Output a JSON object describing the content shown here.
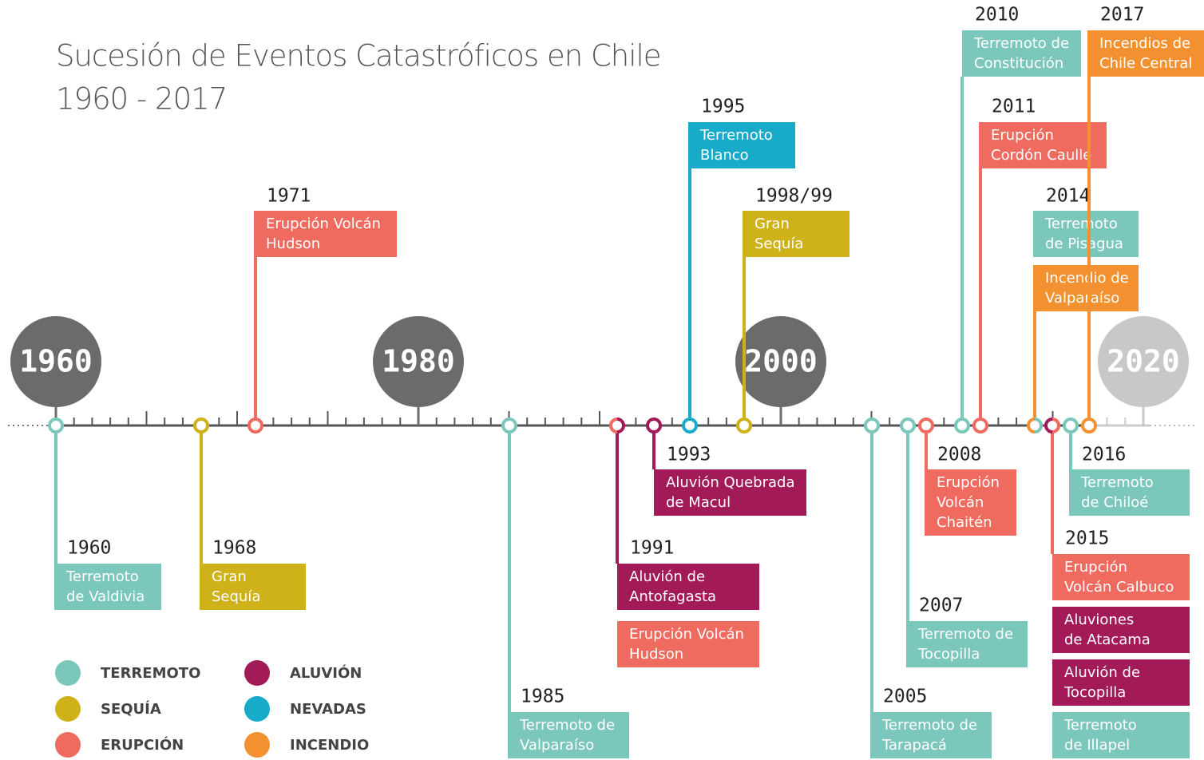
{
  "title": [
    "Sucesión de Eventos Catastróficos en Chile",
    "1960 - 2017"
  ],
  "decades": [
    "1960",
    "1980",
    "2000",
    "2020"
  ],
  "legend": [
    {
      "label": "TERREMOTO",
      "color": "#7cc7bb"
    },
    {
      "label": "SEQUÍA",
      "color": "#cfb11a"
    },
    {
      "label": "ERUPCIÓN",
      "color": "#ef6a5f"
    },
    {
      "label": "ALUVIÓN",
      "color": "#a31a59"
    },
    {
      "label": "NEVADAS",
      "color": "#17abc9"
    },
    {
      "label": "INCENDIO",
      "color": "#f39130"
    }
  ],
  "events": [
    {
      "year": "1960",
      "entries": [
        {
          "category": 0,
          "lines": [
            "Terremoto",
            "de Valdivia"
          ]
        }
      ]
    },
    {
      "year": "1968",
      "entries": [
        {
          "category": 1,
          "lines": [
            "Gran",
            "Sequía"
          ]
        }
      ]
    },
    {
      "year": "1971",
      "entries": [
        {
          "category": 2,
          "lines": [
            "Erupción Volcán",
            "Hudson"
          ]
        }
      ]
    },
    {
      "year": "1985",
      "entries": [
        {
          "category": 0,
          "lines": [
            "Terremoto de",
            "Valparaíso"
          ]
        }
      ]
    },
    {
      "year": "1991",
      "entries": [
        {
          "category": 3,
          "lines": [
            "Aluvión de",
            "Antofagasta"
          ]
        },
        {
          "category": 2,
          "lines": [
            "Erupción Volcán",
            "Hudson"
          ]
        }
      ]
    },
    {
      "year": "1993",
      "entries": [
        {
          "category": 3,
          "lines": [
            "Aluvión Quebrada",
            "de Macul"
          ]
        }
      ]
    },
    {
      "year": "1995",
      "entries": [
        {
          "category": 4,
          "lines": [
            "Terremoto",
            "Blanco"
          ]
        }
      ]
    },
    {
      "year": "1998/99",
      "entries": [
        {
          "category": 1,
          "lines": [
            "Gran",
            "Sequía"
          ]
        }
      ]
    },
    {
      "year": "2005",
      "entries": [
        {
          "category": 0,
          "lines": [
            "Terremoto de",
            "Tarapacá"
          ]
        }
      ]
    },
    {
      "year": "2007",
      "entries": [
        {
          "category": 0,
          "lines": [
            "Terremoto de",
            "Tocopilla"
          ]
        }
      ]
    },
    {
      "year": "2008",
      "entries": [
        {
          "category": 2,
          "lines": [
            "Erupción",
            "Volcán",
            "Chaitén"
          ]
        }
      ]
    },
    {
      "year": "2010",
      "entries": [
        {
          "category": 0,
          "lines": [
            "Terremoto de",
            "Constitución"
          ]
        }
      ]
    },
    {
      "year": "2011",
      "entries": [
        {
          "category": 2,
          "lines": [
            "Erupción",
            "Cordón Caulle"
          ]
        }
      ]
    },
    {
      "year": "2014",
      "entries": [
        {
          "category": 0,
          "lines": [
            "Terremoto",
            "de Pisagua"
          ]
        },
        {
          "category": 5,
          "lines": [
            "Incendio de",
            "Valparaíso"
          ]
        }
      ]
    },
    {
      "year": "2015",
      "entries": [
        {
          "category": 2,
          "lines": [
            "Erupción",
            "Volcán Calbuco"
          ]
        },
        {
          "category": 3,
          "lines": [
            "Aluviones",
            "de Atacama"
          ]
        },
        {
          "category": 3,
          "lines": [
            "Aluvión de",
            "Tocopilla"
          ]
        },
        {
          "category": 0,
          "lines": [
            "Terremoto",
            "de Illapel"
          ]
        }
      ]
    },
    {
      "year": "2016",
      "entries": [
        {
          "category": 0,
          "lines": [
            "Terremoto",
            "de Chiloé"
          ]
        }
      ]
    },
    {
      "year": "2017",
      "entries": [
        {
          "category": 5,
          "lines": [
            "Incendios de",
            "Chile Central"
          ]
        }
      ]
    }
  ]
}
